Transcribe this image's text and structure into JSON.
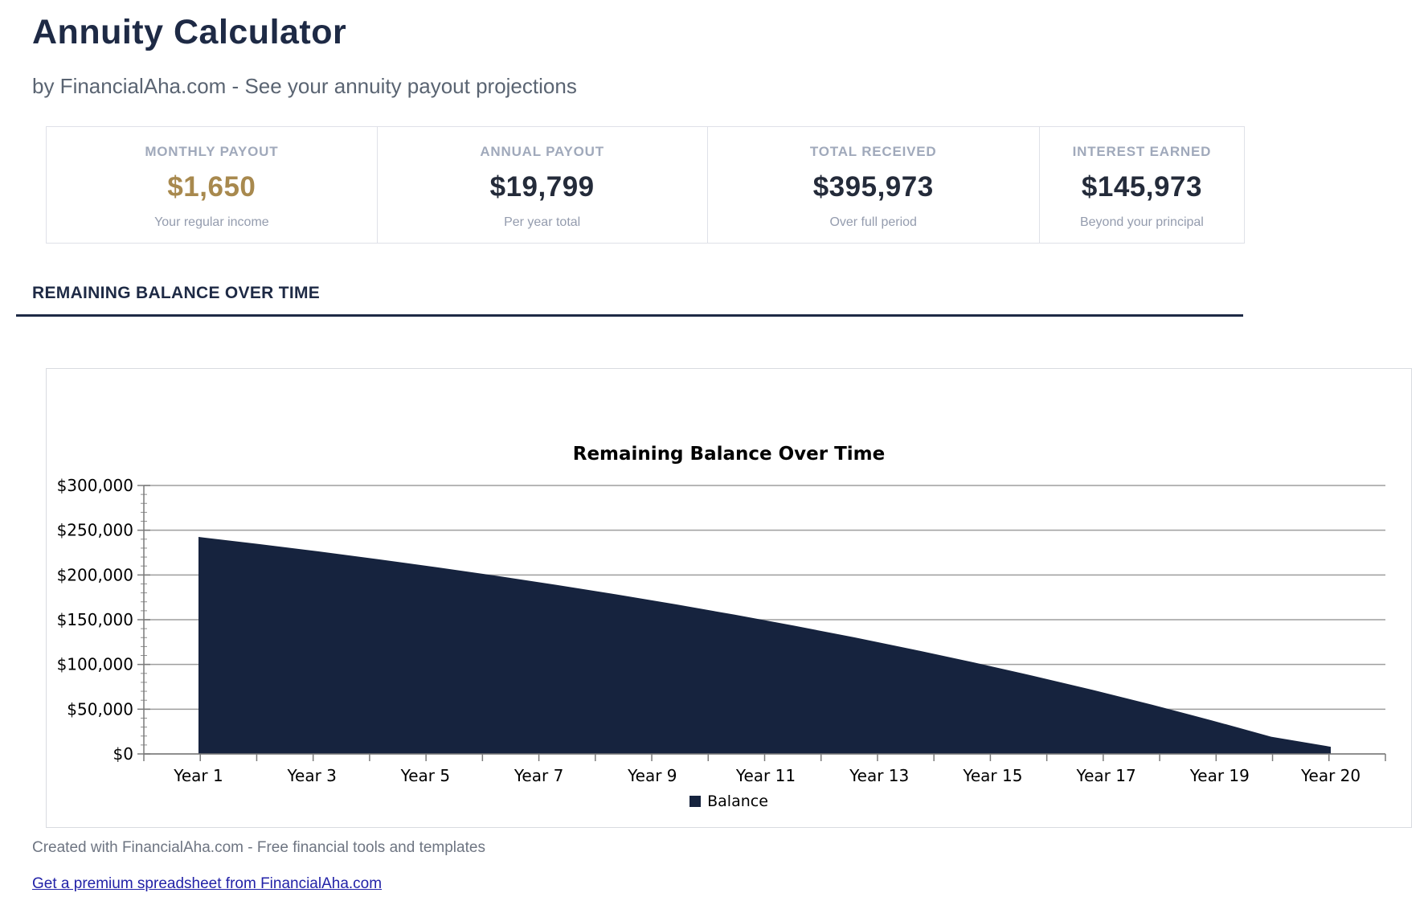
{
  "header": {
    "title": "Annuity Calculator",
    "subtitle": "by FinancialAha.com - See your annuity payout projections"
  },
  "stats": {
    "cards": [
      {
        "label": "MONTHLY PAYOUT",
        "value": "$1,650",
        "sub": "Your regular income",
        "value_color": "#a8894e"
      },
      {
        "label": "ANNUAL PAYOUT",
        "value": "$19,799",
        "sub": "Per year total",
        "value_color": "#242b3a"
      },
      {
        "label": "TOTAL RECEIVED",
        "value": "$395,973",
        "sub": "Over full period",
        "value_color": "#242b3a"
      },
      {
        "label": "INTEREST EARNED",
        "value": "$145,973",
        "sub": "Beyond your principal",
        "value_color": "#242b3a"
      }
    ]
  },
  "section": {
    "title": "REMAINING BALANCE OVER TIME"
  },
  "chart_data": {
    "type": "area",
    "title": "Remaining Balance Over Time",
    "categories": [
      "Year 1",
      "Year 2",
      "Year 3",
      "Year 4",
      "Year 5",
      "Year 6",
      "Year 7",
      "Year 8",
      "Year 9",
      "Year 10",
      "Year 11",
      "Year 12",
      "Year 13",
      "Year 14",
      "Year 15",
      "Year 16",
      "Year 17",
      "Year 18",
      "Year 19",
      "Year 20"
    ],
    "x_axis_labels_shown": [
      "Year 1",
      "Year 3",
      "Year 5",
      "Year 7",
      "Year 9",
      "Year 11",
      "Year 13",
      "Year 15",
      "Year 17",
      "Year 19",
      "Year 20"
    ],
    "series": [
      {
        "name": "Balance",
        "color": "#16233e",
        "values": [
          242531,
          234679,
          226426,
          217750,
          208630,
          199044,
          188967,
          178375,
          167241,
          155537,
          143235,
          130304,
          116711,
          102423,
          87404,
          71617,
          55022,
          37578,
          19241,
          8000
        ]
      }
    ],
    "ylim": [
      0,
      300000
    ],
    "ytick_step": 50000,
    "ytick_labels": [
      "$0",
      "$50,000",
      "$100,000",
      "$150,000",
      "$200,000",
      "$250,000",
      "$300,000"
    ],
    "grid": "horizontal-major",
    "legend_position": "bottom"
  },
  "footer": {
    "credit": "Created with FinancialAha.com - Free financial tools and templates",
    "link": "Get a premium spreadsheet from FinancialAha.com"
  },
  "colors": {
    "heading_navy": "#1e2a45",
    "accent_gold": "#a8894e",
    "area_fill": "#16233e",
    "link_blue": "#2222a8"
  }
}
